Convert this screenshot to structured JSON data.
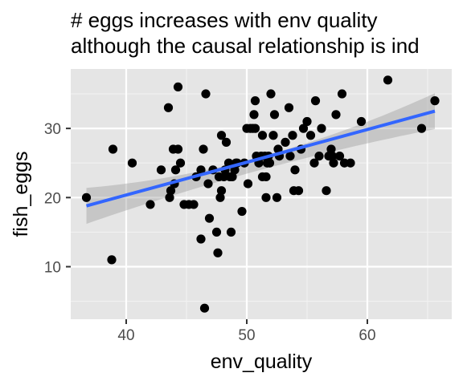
{
  "chart_data": {
    "type": "scatter",
    "title": "# eggs increases with env quality",
    "subtitle": "although the causal relationship is ind",
    "xlabel": "env_quality",
    "ylabel": "fish_eggs",
    "xlim": [
      35.4,
      67.0
    ],
    "ylim": [
      2.4,
      38.6
    ],
    "x_ticks": [
      40,
      50,
      60
    ],
    "y_ticks": [
      10,
      20,
      30
    ],
    "x_tick_labels": [
      "40",
      "50",
      "60"
    ],
    "y_tick_labels": [
      "10",
      "20",
      "30"
    ],
    "grid": true,
    "background": "#e5e5e5",
    "point_color": "#000000",
    "fit": {
      "method": "linear",
      "x_range": [
        36.7,
        65.6
      ],
      "y_at_start": 18.8,
      "y_at_end": 32.5,
      "line_color": "#3366ff",
      "band_color": "#999999",
      "band_lower_at_start": 16.2,
      "band_upper_at_start": 21.4,
      "band_lower_at_mid": 24.0,
      "band_upper_at_mid": 25.9,
      "band_lower_at_end": 29.9,
      "band_upper_at_end": 35.1
    },
    "points": [
      [
        36.7,
        20
      ],
      [
        38.9,
        27
      ],
      [
        38.8,
        11
      ],
      [
        40.5,
        25
      ],
      [
        42.0,
        19
      ],
      [
        42.9,
        24
      ],
      [
        43.5,
        33
      ],
      [
        43.6,
        20
      ],
      [
        43.7,
        21
      ],
      [
        43.9,
        27
      ],
      [
        44.0,
        22
      ],
      [
        44.1,
        24
      ],
      [
        44.3,
        27
      ],
      [
        44.3,
        36
      ],
      [
        44.5,
        25
      ],
      [
        44.8,
        19
      ],
      [
        45.2,
        19
      ],
      [
        45.6,
        19
      ],
      [
        45.8,
        23
      ],
      [
        46.2,
        14
      ],
      [
        46.2,
        24
      ],
      [
        46.4,
        27
      ],
      [
        46.5,
        4
      ],
      [
        46.6,
        35
      ],
      [
        46.8,
        22
      ],
      [
        46.9,
        17
      ],
      [
        47.2,
        24
      ],
      [
        47.5,
        15
      ],
      [
        47.6,
        12
      ],
      [
        47.7,
        23
      ],
      [
        47.8,
        20
      ],
      [
        47.9,
        21
      ],
      [
        47.9,
        29
      ],
      [
        48.1,
        23
      ],
      [
        48.2,
        24
      ],
      [
        48.3,
        28
      ],
      [
        48.5,
        25
      ],
      [
        48.6,
        23
      ],
      [
        48.7,
        15
      ],
      [
        48.8,
        23
      ],
      [
        49.0,
        24
      ],
      [
        49.1,
        25
      ],
      [
        49.2,
        25
      ],
      [
        49.6,
        18
      ],
      [
        49.8,
        25
      ],
      [
        50.0,
        30
      ],
      [
        50.1,
        22
      ],
      [
        50.3,
        30
      ],
      [
        50.5,
        30
      ],
      [
        50.6,
        32
      ],
      [
        50.7,
        30
      ],
      [
        50.7,
        34
      ],
      [
        50.8,
        26
      ],
      [
        51.0,
        25
      ],
      [
        51.2,
        26
      ],
      [
        51.3,
        29
      ],
      [
        51.3,
        23
      ],
      [
        51.5,
        26
      ],
      [
        51.6,
        20
      ],
      [
        51.6,
        23
      ],
      [
        51.7,
        25
      ],
      [
        51.8,
        26
      ],
      [
        51.9,
        25
      ],
      [
        52.0,
        35
      ],
      [
        52.2,
        29
      ],
      [
        52.3,
        32
      ],
      [
        52.5,
        20
      ],
      [
        52.6,
        27
      ],
      [
        52.7,
        26
      ],
      [
        53.2,
        28
      ],
      [
        53.5,
        33
      ],
      [
        53.6,
        26
      ],
      [
        53.8,
        29
      ],
      [
        53.9,
        21
      ],
      [
        54.0,
        24
      ],
      [
        54.3,
        21
      ],
      [
        54.5,
        27
      ],
      [
        54.7,
        30
      ],
      [
        55.0,
        31
      ],
      [
        55.3,
        29
      ],
      [
        55.6,
        25
      ],
      [
        55.7,
        34
      ],
      [
        56.0,
        26
      ],
      [
        56.2,
        30
      ],
      [
        56.6,
        21
      ],
      [
        56.8,
        26
      ],
      [
        57.0,
        27
      ],
      [
        57.1,
        26
      ],
      [
        57.2,
        25
      ],
      [
        57.4,
        32
      ],
      [
        57.7,
        26
      ],
      [
        57.9,
        35
      ],
      [
        58.1,
        25
      ],
      [
        58.6,
        25
      ],
      [
        59.5,
        31
      ],
      [
        61.7,
        37
      ],
      [
        64.5,
        30
      ],
      [
        65.6,
        34
      ]
    ]
  }
}
